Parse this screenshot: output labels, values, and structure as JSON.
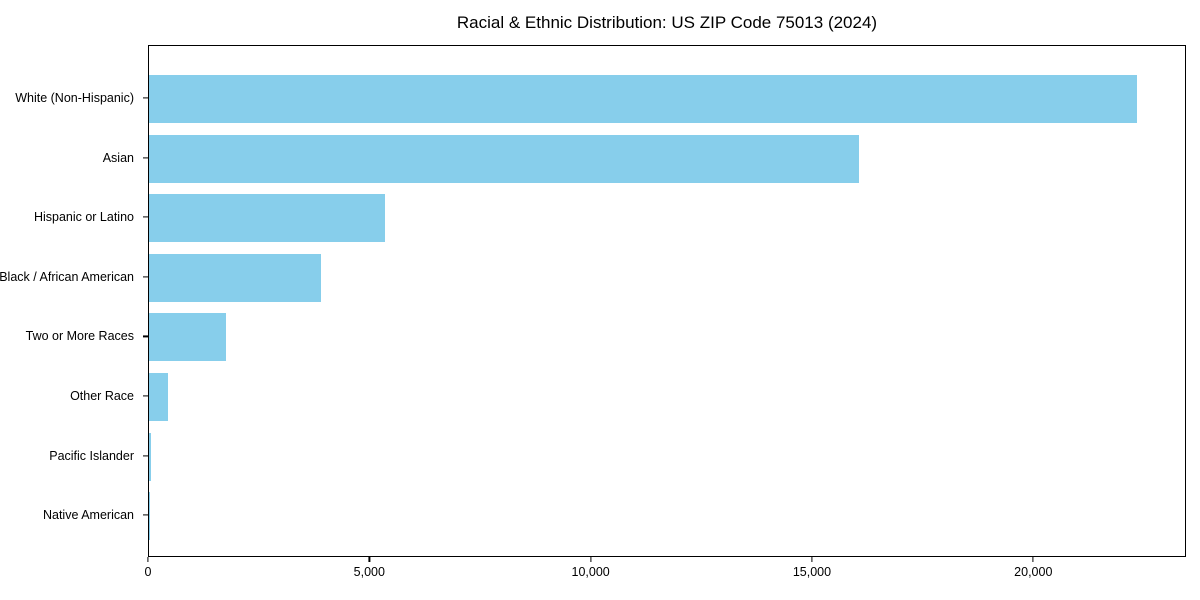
{
  "chart_data": {
    "type": "bar",
    "orientation": "horizontal",
    "title": "Racial & Ethnic Distribution: US ZIP Code 75013 (2024)",
    "categories": [
      "White (Non-Hispanic)",
      "Asian",
      "Hispanic or Latino",
      "Black / African American",
      "Two or More Races",
      "Other Race",
      "Pacific Islander",
      "Native American"
    ],
    "values": [
      22330,
      16050,
      5330,
      3890,
      1740,
      430,
      45,
      20
    ],
    "xlabel": "",
    "ylabel": "",
    "xlim": [
      0,
      23450
    ],
    "x_ticks": [
      0,
      5000,
      10000,
      15000,
      20000
    ],
    "x_tick_labels": [
      "0",
      "5,000",
      "10,000",
      "15,000",
      "20,000"
    ],
    "grid": false,
    "legend": "none",
    "bar_color": "#87CEEB",
    "background_color": "#ffffff",
    "spine_color": "#000000"
  }
}
